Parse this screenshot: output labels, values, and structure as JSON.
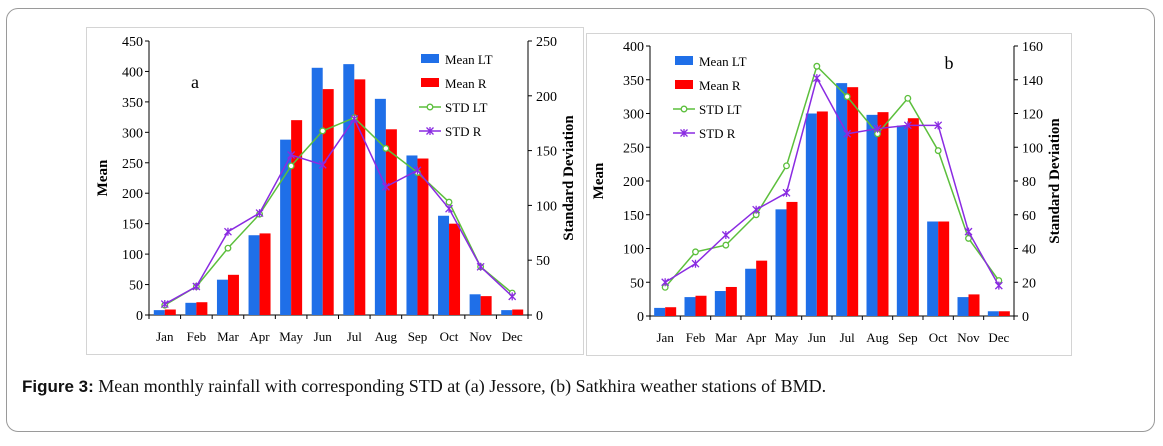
{
  "caption": {
    "label": "Figure 3:",
    "text": " Mean monthly rainfall with corresponding STD at (a) Jessore, (b) Satkhira weather stations of BMD."
  },
  "colors": {
    "mean_lt": "#1f6fe8",
    "mean_r": "#ff0000",
    "std_lt": "#5cbf3c",
    "std_r": "#8a2be2"
  },
  "chart_data": [
    {
      "type": "bar",
      "panel_label": "a",
      "categories": [
        "Jan",
        "Feb",
        "Mar",
        "Apr",
        "May",
        "Jun",
        "Jul",
        "Aug",
        "Sep",
        "Oct",
        "Nov",
        "Dec"
      ],
      "ylabel": "Mean",
      "y2label": "Standard Deviation",
      "ylim": [
        0,
        450
      ],
      "yticks": [
        0,
        50,
        100,
        150,
        200,
        250,
        300,
        350,
        400,
        450
      ],
      "y2lim": [
        0,
        250
      ],
      "y2ticks": [
        0,
        50,
        100,
        150,
        200,
        250
      ],
      "legend_position": "top-right",
      "grid": false,
      "series": [
        {
          "name": "Mean LT",
          "type": "bar",
          "axis": "left",
          "values": [
            8,
            20,
            58,
            131,
            288,
            406,
            412,
            355,
            262,
            163,
            34,
            8
          ]
        },
        {
          "name": "Mean R",
          "type": "bar",
          "axis": "left",
          "values": [
            9,
            21,
            66,
            134,
            320,
            371,
            387,
            305,
            257,
            150,
            31,
            9
          ]
        },
        {
          "name": "STD LT",
          "type": "line",
          "axis": "right",
          "values": [
            9,
            26,
            61,
            92,
            136,
            168,
            180,
            152,
            130,
            103,
            44,
            20
          ]
        },
        {
          "name": "STD R",
          "type": "line",
          "axis": "right",
          "values": [
            10,
            26,
            76,
            93,
            146,
            137,
            179,
            117,
            132,
            97,
            44,
            17
          ]
        }
      ]
    },
    {
      "type": "bar",
      "panel_label": "b",
      "categories": [
        "Jan",
        "Feb",
        "Mar",
        "Apr",
        "May",
        "Jun",
        "Jul",
        "Aug",
        "Sep",
        "Oct",
        "Nov",
        "Dec"
      ],
      "ylabel": "Mean",
      "y2label": "Standard Deviation",
      "ylim": [
        0,
        400
      ],
      "yticks": [
        0,
        50,
        100,
        150,
        200,
        250,
        300,
        350,
        400
      ],
      "y2lim": [
        0,
        160
      ],
      "y2ticks": [
        0,
        20,
        40,
        60,
        80,
        100,
        120,
        140,
        160
      ],
      "legend_position": "top-left",
      "grid": false,
      "series": [
        {
          "name": "Mean LT",
          "type": "bar",
          "axis": "left",
          "values": [
            12,
            28,
            37,
            70,
            158,
            300,
            345,
            298,
            282,
            140,
            28,
            7
          ]
        },
        {
          "name": "Mean R",
          "type": "bar",
          "axis": "left",
          "values": [
            13,
            30,
            43,
            82,
            169,
            303,
            339,
            302,
            293,
            140,
            32,
            7
          ]
        },
        {
          "name": "STD LT",
          "type": "line",
          "axis": "right",
          "values": [
            17,
            38,
            42,
            60,
            89,
            148,
            130,
            108,
            129,
            98,
            46,
            21
          ]
        },
        {
          "name": "STD R",
          "type": "line",
          "axis": "right",
          "values": [
            20,
            31,
            48,
            63,
            73,
            141,
            108,
            111,
            113,
            113,
            50,
            18
          ]
        }
      ]
    }
  ]
}
